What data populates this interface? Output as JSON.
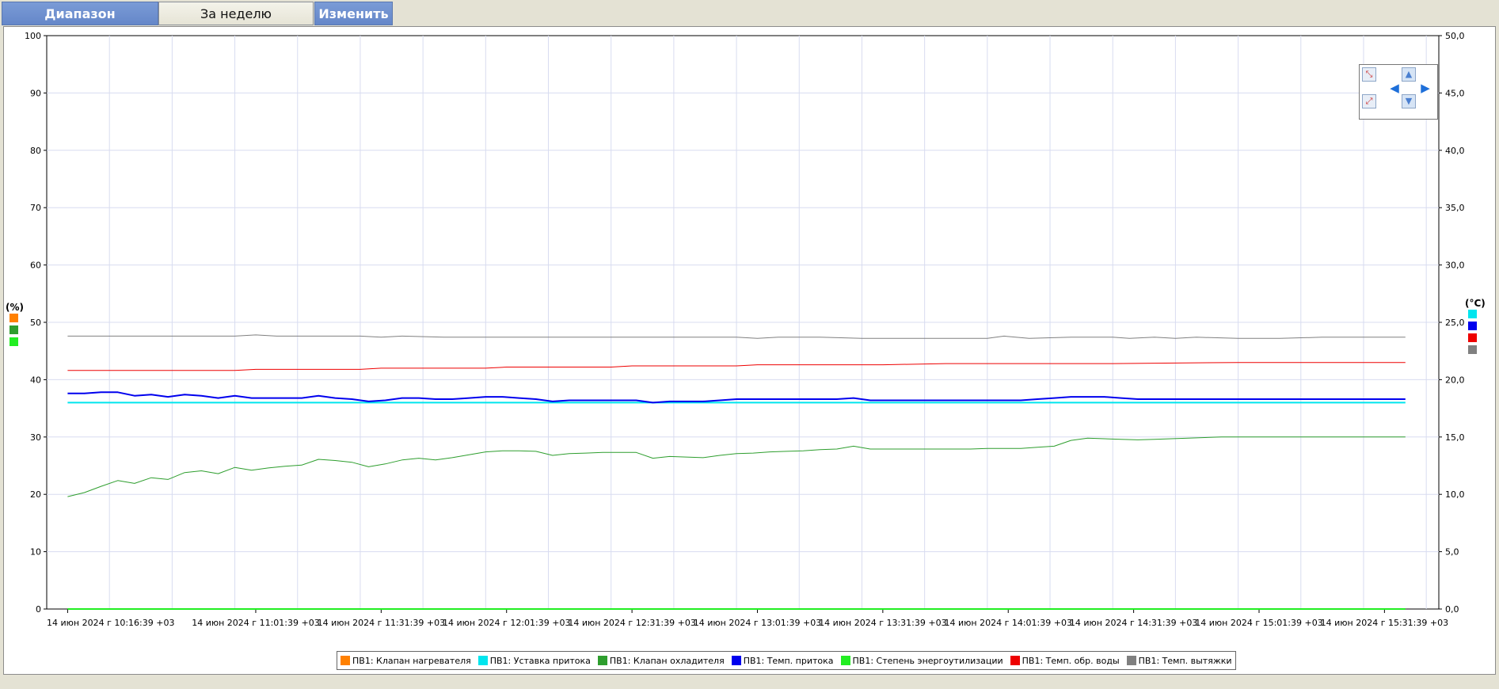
{
  "toolbar": {
    "range_label": "Диапазон",
    "week_label": "За неделю",
    "change_label": "Изменить"
  },
  "chart_data": {
    "type": "line",
    "left_axis": {
      "unit": "(%)",
      "ylim": [
        0,
        100
      ],
      "ticks": [
        "0",
        "10",
        "20",
        "30",
        "40",
        "50",
        "60",
        "70",
        "80",
        "90",
        "100"
      ]
    },
    "right_axis": {
      "unit": "(°C)",
      "ylim": [
        0,
        50
      ],
      "ticks": [
        "0,0",
        "5,0",
        "10,0",
        "15,0",
        "20,0",
        "25,0",
        "30,0",
        "35,0",
        "40,0",
        "45,0",
        "50,0"
      ]
    },
    "x_ticks": [
      "14 июн 2024 г 10:16:39 +03",
      "14 июн 2024 г 11:01:39 +03",
      "14 июн 2024 г 11:31:39 +03",
      "14 июн 2024 г 12:01:39 +03",
      "14 июн 2024 г 12:31:39 +03",
      "14 июн 2024 г 13:01:39 +03",
      "14 июн 2024 г 13:31:39 +03",
      "14 июн 2024 г 14:01:39 +03",
      "14 июн 2024 г 14:31:39 +03",
      "14 июн 2024 г 15:01:39 +03",
      "14 июн 2024 г 15:31:39 +03"
    ],
    "x_tick_minutes": [
      0,
      45,
      75,
      105,
      135,
      165,
      195,
      225,
      255,
      285,
      315
    ],
    "grid": true,
    "legend_position": "bottom",
    "series": [
      {
        "name": "ПВ1: Клапан нагревателя",
        "color": "#ff8000",
        "axis": "left",
        "width": 1,
        "x": [],
        "y": []
      },
      {
        "name": "ПВ1: Уставка притока",
        "color": "#00e5ee",
        "axis": "right",
        "width": 2,
        "x": [
          0,
          320
        ],
        "y": [
          18.0,
          18.0
        ]
      },
      {
        "name": "ПВ1: Клапан охладителя",
        "color": "#2e9e2e",
        "axis": "left",
        "width": 1,
        "x": [
          0,
          4,
          8,
          12,
          16,
          20,
          24,
          28,
          32,
          36,
          40,
          44,
          48,
          52,
          56,
          60,
          64,
          68,
          72,
          76,
          80,
          84,
          88,
          92,
          96,
          100,
          104,
          108,
          112,
          116,
          120,
          124,
          128,
          132,
          136,
          140,
          144,
          148,
          152,
          156,
          160,
          164,
          168,
          172,
          176,
          180,
          184,
          188,
          192,
          196,
          200,
          204,
          208,
          212,
          216,
          220,
          224,
          228,
          232,
          236,
          240,
          244,
          248,
          252,
          256,
          260,
          264,
          268,
          272,
          276,
          280,
          284,
          288,
          292,
          296,
          300,
          304,
          308,
          312,
          316,
          320
        ],
        "y": [
          19.6,
          20.3,
          21.4,
          22.4,
          21.9,
          22.9,
          22.6,
          23.8,
          24.1,
          23.6,
          24.7,
          24.2,
          24.6,
          24.9,
          25.1,
          26.1,
          25.9,
          25.6,
          24.8,
          25.3,
          26.0,
          26.3,
          26.0,
          26.4,
          26.9,
          27.4,
          27.6,
          27.6,
          27.5,
          26.8,
          27.1,
          27.2,
          27.3,
          27.3,
          27.3,
          26.3,
          26.6,
          26.5,
          26.4,
          26.8,
          27.1,
          27.2,
          27.4,
          27.5,
          27.6,
          27.8,
          27.9,
          28.4,
          27.9,
          27.9,
          27.9,
          27.9,
          27.9,
          27.9,
          27.9,
          28.0,
          28.0,
          28.0,
          28.2,
          28.4,
          29.4,
          29.8,
          29.7,
          29.6,
          29.5,
          29.6,
          29.7,
          29.8,
          29.9,
          30.0,
          30.0,
          30.0,
          30.0,
          30.0,
          30.0,
          30.0,
          30.0,
          30.0,
          30.0,
          30.0,
          30.0
        ]
      },
      {
        "name": "ПВ1: Темп. притока",
        "color": "#0000ee",
        "axis": "right",
        "width": 2,
        "x": [
          0,
          4,
          8,
          12,
          16,
          20,
          24,
          28,
          32,
          36,
          40,
          44,
          48,
          52,
          56,
          60,
          64,
          68,
          72,
          76,
          80,
          84,
          88,
          92,
          96,
          100,
          104,
          108,
          112,
          116,
          120,
          124,
          128,
          132,
          136,
          140,
          144,
          148,
          152,
          156,
          160,
          164,
          168,
          172,
          176,
          180,
          184,
          188,
          192,
          196,
          200,
          204,
          208,
          212,
          216,
          220,
          224,
          228,
          232,
          236,
          240,
          244,
          248,
          252,
          256,
          260,
          264,
          268,
          272,
          276,
          280,
          284,
          288,
          292,
          296,
          300,
          304,
          308,
          312,
          316,
          320
        ],
        "y": [
          18.8,
          18.8,
          18.9,
          18.9,
          18.6,
          18.7,
          18.5,
          18.7,
          18.6,
          18.4,
          18.6,
          18.4,
          18.4,
          18.4,
          18.4,
          18.6,
          18.4,
          18.3,
          18.1,
          18.2,
          18.4,
          18.4,
          18.3,
          18.3,
          18.4,
          18.5,
          18.5,
          18.4,
          18.3,
          18.1,
          18.2,
          18.2,
          18.2,
          18.2,
          18.2,
          18.0,
          18.1,
          18.1,
          18.1,
          18.2,
          18.3,
          18.3,
          18.3,
          18.3,
          18.3,
          18.3,
          18.3,
          18.4,
          18.2,
          18.2,
          18.2,
          18.2,
          18.2,
          18.2,
          18.2,
          18.2,
          18.2,
          18.2,
          18.3,
          18.4,
          18.5,
          18.5,
          18.5,
          18.4,
          18.3,
          18.3,
          18.3,
          18.3,
          18.3,
          18.3,
          18.3,
          18.3,
          18.3,
          18.3,
          18.3,
          18.3,
          18.3,
          18.3,
          18.3,
          18.3,
          18.3
        ]
      },
      {
        "name": "ПВ1: Степень энергоутилизации",
        "color": "#22ee22",
        "axis": "left",
        "width": 2,
        "x": [
          0,
          320
        ],
        "y": [
          0,
          0
        ]
      },
      {
        "name": "ПВ1: Темп. обр. воды",
        "color": "#ee0000",
        "axis": "right",
        "width": 1,
        "x": [
          0,
          40,
          45,
          70,
          75,
          100,
          105,
          130,
          135,
          160,
          165,
          195,
          210,
          250,
          280,
          320
        ],
        "y": [
          20.8,
          20.8,
          20.9,
          20.9,
          21.0,
          21.0,
          21.1,
          21.1,
          21.2,
          21.2,
          21.3,
          21.3,
          21.4,
          21.4,
          21.5,
          21.5
        ]
      },
      {
        "name": "ПВ1: Темп. вытяжки",
        "color": "#808080",
        "axis": "right",
        "width": 1,
        "x": [
          0,
          10,
          20,
          30,
          40,
          45,
          50,
          60,
          70,
          75,
          80,
          90,
          100,
          110,
          120,
          130,
          160,
          165,
          170,
          180,
          190,
          200,
          210,
          220,
          224,
          230,
          240,
          250,
          254,
          260,
          265,
          270,
          280,
          290,
          300,
          310,
          320
        ],
        "y": [
          23.8,
          23.8,
          23.8,
          23.8,
          23.8,
          23.9,
          23.8,
          23.8,
          23.8,
          23.7,
          23.8,
          23.7,
          23.7,
          23.7,
          23.7,
          23.7,
          23.7,
          23.6,
          23.7,
          23.7,
          23.6,
          23.6,
          23.6,
          23.6,
          23.8,
          23.6,
          23.7,
          23.7,
          23.6,
          23.7,
          23.6,
          23.7,
          23.6,
          23.6,
          23.7,
          23.7,
          23.7
        ]
      }
    ]
  },
  "legend": [
    {
      "label": "ПВ1: Клапан нагревателя",
      "color": "#ff8000"
    },
    {
      "label": "ПВ1: Уставка притока",
      "color": "#00e5ee"
    },
    {
      "label": "ПВ1: Клапан охладителя",
      "color": "#2e9e2e"
    },
    {
      "label": "ПВ1: Темп. притока",
      "color": "#0000ee"
    },
    {
      "label": "ПВ1: Степень энергоутилизации",
      "color": "#22ee22"
    },
    {
      "label": "ПВ1: Темп. обр. воды",
      "color": "#ee0000"
    },
    {
      "label": "ПВ1: Темп. вытяжки",
      "color": "#808080"
    }
  ],
  "axis_markers": {
    "left": [
      "#ff8000",
      "#2e9e2e",
      "#22ee22"
    ],
    "right": [
      "#00e5ee",
      "#0000ee",
      "#ee0000",
      "#808080"
    ]
  },
  "nav_icons": [
    "zoom-in-icon",
    "arrow-up-icon",
    "arrow-left-icon",
    "arrow-right-icon",
    "zoom-out-icon",
    "arrow-down-icon"
  ]
}
